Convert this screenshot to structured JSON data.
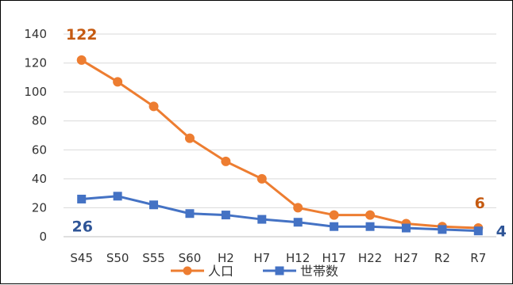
{
  "chart_data": {
    "type": "line",
    "title": "",
    "xlabel": "",
    "ylabel": "",
    "categories": [
      "S45",
      "S50",
      "S55",
      "S60",
      "H2",
      "H7",
      "H12",
      "H17",
      "H22",
      "H27",
      "R2",
      "R7"
    ],
    "ylim": [
      0,
      140
    ],
    "yticks": [
      0,
      20,
      40,
      60,
      80,
      100,
      120,
      140
    ],
    "grid": true,
    "legend_position": "bottom",
    "series": [
      {
        "name": "人口",
        "color": "#ED7D31",
        "marker": "circle",
        "values": [
          122,
          107,
          90,
          68,
          52,
          40,
          20,
          15,
          15,
          9,
          7,
          6
        ]
      },
      {
        "name": "世帯数",
        "color": "#4472C4",
        "marker": "square",
        "values": [
          26,
          28,
          22,
          16,
          15,
          12,
          10,
          7,
          7,
          6,
          5,
          4
        ]
      }
    ],
    "annotations": [
      {
        "text": "122",
        "series": 0,
        "point": 0,
        "color": "#C55A11"
      },
      {
        "text": "6",
        "series": 0,
        "point": 11,
        "color": "#C55A11"
      },
      {
        "text": "26",
        "series": 1,
        "point": 0,
        "color": "#2F5597"
      },
      {
        "text": "4",
        "series": 1,
        "point": 11,
        "color": "#2F5597"
      }
    ]
  }
}
